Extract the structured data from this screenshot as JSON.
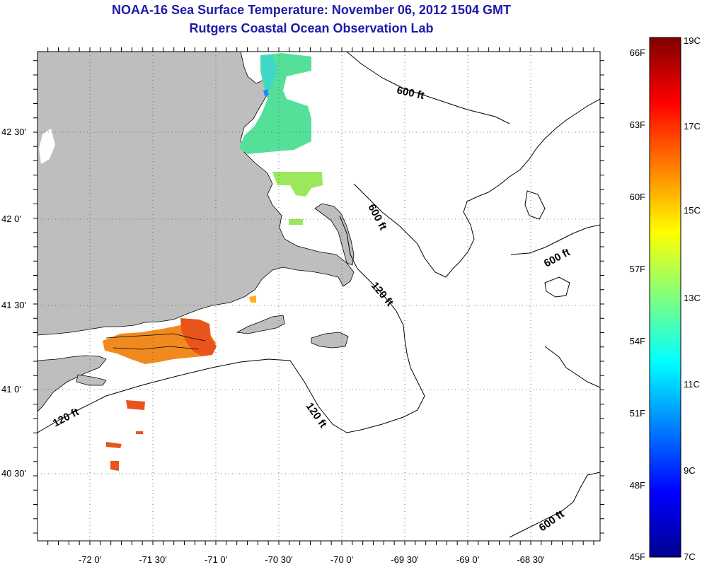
{
  "title": "NOAA-16 Sea Surface Temperature:  November 06, 2012 1504 GMT",
  "subtitle": "Rutgers Coastal Ocean Observation Lab",
  "lon_ticks": [
    "-72 0'",
    "-71 30'",
    "-71 0'",
    "-70 30'",
    "-70 0'",
    "-69 30'",
    "-69 0'",
    "-68 30'"
  ],
  "lat_ticks": [
    "42 30'",
    "42 0'",
    "41 30'",
    "41 0'",
    "40 30'"
  ],
  "depth_labels": [
    "600 ft",
    "600 ft",
    "600 ft",
    "600 ft",
    "120 ft",
    "120 ft",
    "120 ft"
  ],
  "colorbar": {
    "celsius": [
      "19C",
      "17C",
      "15C",
      "13C",
      "11C",
      "9C",
      "7C"
    ],
    "fahrenheit": [
      "66F",
      "63F",
      "60F",
      "57F",
      "54F",
      "51F",
      "48F",
      "45F"
    ]
  },
  "colors": {
    "title": "#1c1ca8",
    "land": "#bebebe",
    "warm": "#e8541a",
    "cool": "#5ce08c"
  }
}
